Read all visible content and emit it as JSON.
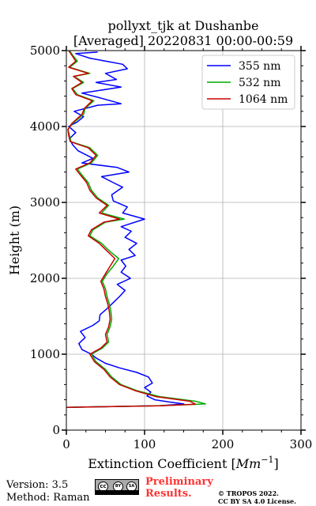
{
  "chart_data": {
    "type": "line",
    "title_line1": "pollyxt_tjk at Dushanbe",
    "title_line2": "[Averaged] 20220831 00:00-00:59",
    "xlabel": "Extinction Coefficient [",
    "xlabel_unit": "Mm",
    "xlabel_exp": "−1",
    "xlabel_end": "]",
    "ylabel": "Height (m)",
    "xlim": [
      0,
      300
    ],
    "ylim": [
      0,
      5000
    ],
    "xticks": [
      "0",
      "100",
      "200",
      "300"
    ],
    "yticks": [
      "0",
      "1000",
      "2000",
      "3000",
      "4000",
      "5000"
    ],
    "grid": true,
    "legend_position": "top-right",
    "series": [
      {
        "name": "355 nm",
        "color": "#0000ff",
        "points": [
          [
            0,
            300
          ],
          [
            120,
            322
          ],
          [
            150,
            345
          ],
          [
            132,
            370
          ],
          [
            113,
            400
          ],
          [
            103,
            450
          ],
          [
            108,
            500
          ],
          [
            100,
            560
          ],
          [
            110,
            620
          ],
          [
            105,
            700
          ],
          [
            90,
            760
          ],
          [
            68,
            820
          ],
          [
            50,
            880
          ],
          [
            38,
            950
          ],
          [
            32,
            1000
          ],
          [
            20,
            1060
          ],
          [
            16,
            1140
          ],
          [
            24,
            1220
          ],
          [
            18,
            1300
          ],
          [
            34,
            1380
          ],
          [
            42,
            1440
          ],
          [
            43,
            1520
          ],
          [
            52,
            1600
          ],
          [
            60,
            1680
          ],
          [
            68,
            1760
          ],
          [
            75,
            1840
          ],
          [
            65,
            1920
          ],
          [
            82,
            2000
          ],
          [
            70,
            2080
          ],
          [
            76,
            2160
          ],
          [
            70,
            2240
          ],
          [
            88,
            2300
          ],
          [
            80,
            2380
          ],
          [
            90,
            2460
          ],
          [
            75,
            2540
          ],
          [
            83,
            2620
          ],
          [
            70,
            2680
          ],
          [
            100,
            2780
          ],
          [
            72,
            2860
          ],
          [
            78,
            2940
          ],
          [
            60,
            3020
          ],
          [
            58,
            3100
          ],
          [
            72,
            3200
          ],
          [
            60,
            3260
          ],
          [
            45,
            3340
          ],
          [
            80,
            3400
          ],
          [
            65,
            3460
          ],
          [
            20,
            3520
          ],
          [
            34,
            3580
          ],
          [
            15,
            3680
          ],
          [
            8,
            3760
          ],
          [
            4,
            3840
          ],
          [
            12,
            3920
          ],
          [
            3,
            4000
          ],
          [
            14,
            4060
          ],
          [
            22,
            4130
          ],
          [
            10,
            4200
          ],
          [
            40,
            4280
          ],
          [
            70,
            4300
          ],
          [
            42,
            4380
          ],
          [
            20,
            4440
          ],
          [
            70,
            4520
          ],
          [
            38,
            4580
          ],
          [
            64,
            4620
          ],
          [
            50,
            4700
          ],
          [
            78,
            4760
          ],
          [
            72,
            4820
          ],
          [
            30,
            4900
          ],
          [
            12,
            4960
          ],
          [
            40,
            4980
          ]
        ]
      },
      {
        "name": "532 nm",
        "color": "#00aa00",
        "points": [
          [
            0,
            300
          ],
          [
            120,
            322
          ],
          [
            178,
            345
          ],
          [
            165,
            380
          ],
          [
            120,
            440
          ],
          [
            90,
            520
          ],
          [
            70,
            600
          ],
          [
            58,
            700
          ],
          [
            50,
            800
          ],
          [
            38,
            900
          ],
          [
            32,
            1000
          ],
          [
            46,
            1080
          ],
          [
            54,
            1160
          ],
          [
            52,
            1260
          ],
          [
            56,
            1360
          ],
          [
            58,
            1460
          ],
          [
            57,
            1560
          ],
          [
            55,
            1660
          ],
          [
            52,
            1760
          ],
          [
            50,
            1860
          ],
          [
            46,
            1960
          ],
          [
            52,
            2060
          ],
          [
            60,
            2160
          ],
          [
            67,
            2260
          ],
          [
            55,
            2360
          ],
          [
            45,
            2460
          ],
          [
            30,
            2560
          ],
          [
            34,
            2640
          ],
          [
            50,
            2740
          ],
          [
            74,
            2780
          ],
          [
            45,
            2860
          ],
          [
            54,
            2960
          ],
          [
            40,
            3060
          ],
          [
            32,
            3160
          ],
          [
            28,
            3260
          ],
          [
            20,
            3360
          ],
          [
            14,
            3440
          ],
          [
            32,
            3520
          ],
          [
            40,
            3620
          ],
          [
            30,
            3720
          ],
          [
            6,
            3800
          ],
          [
            4,
            3880
          ],
          [
            2,
            3960
          ],
          [
            8,
            4040
          ],
          [
            22,
            4160
          ],
          [
            24,
            4240
          ],
          [
            35,
            4340
          ],
          [
            14,
            4420
          ],
          [
            8,
            4500
          ],
          [
            22,
            4580
          ],
          [
            10,
            4660
          ],
          [
            30,
            4700
          ],
          [
            4,
            4780
          ],
          [
            14,
            4860
          ],
          [
            8,
            4940
          ],
          [
            4,
            5000
          ]
        ]
      },
      {
        "name": "1064 nm",
        "color": "#cc0000",
        "points": [
          [
            0,
            300
          ],
          [
            120,
            320
          ],
          [
            165,
            342
          ],
          [
            158,
            380
          ],
          [
            115,
            440
          ],
          [
            88,
            520
          ],
          [
            68,
            600
          ],
          [
            56,
            700
          ],
          [
            48,
            800
          ],
          [
            36,
            900
          ],
          [
            30,
            1000
          ],
          [
            44,
            1080
          ],
          [
            52,
            1160
          ],
          [
            50,
            1260
          ],
          [
            54,
            1360
          ],
          [
            56,
            1460
          ],
          [
            55,
            1560
          ],
          [
            53,
            1660
          ],
          [
            50,
            1760
          ],
          [
            48,
            1860
          ],
          [
            44,
            1960
          ],
          [
            50,
            2060
          ],
          [
            56,
            2160
          ],
          [
            62,
            2260
          ],
          [
            52,
            2360
          ],
          [
            42,
            2460
          ],
          [
            28,
            2560
          ],
          [
            32,
            2640
          ],
          [
            48,
            2740
          ],
          [
            68,
            2780
          ],
          [
            42,
            2860
          ],
          [
            52,
            2960
          ],
          [
            38,
            3060
          ],
          [
            30,
            3160
          ],
          [
            26,
            3260
          ],
          [
            18,
            3360
          ],
          [
            12,
            3440
          ],
          [
            30,
            3520
          ],
          [
            38,
            3620
          ],
          [
            28,
            3720
          ],
          [
            5,
            3800
          ],
          [
            3,
            3880
          ],
          [
            2,
            3960
          ],
          [
            7,
            4040
          ],
          [
            20,
            4160
          ],
          [
            23,
            4240
          ],
          [
            33,
            4340
          ],
          [
            12,
            4420
          ],
          [
            7,
            4500
          ],
          [
            20,
            4580
          ],
          [
            9,
            4660
          ],
          [
            28,
            4700
          ],
          [
            3,
            4780
          ],
          [
            12,
            4860
          ],
          [
            7,
            4940
          ],
          [
            3,
            5000
          ]
        ]
      }
    ]
  },
  "footer": {
    "version": "Version: 3.5",
    "method": "Method: Raman",
    "prelim_line1": "Preliminary",
    "prelim_line2": "Results.",
    "copyright_line1": "© TROPOS 2022.",
    "copyright_line2": "CC BY SA 4.0 License.",
    "cc_badge_text": "cc",
    "cc_by": "BY",
    "cc_sa": "SA"
  }
}
